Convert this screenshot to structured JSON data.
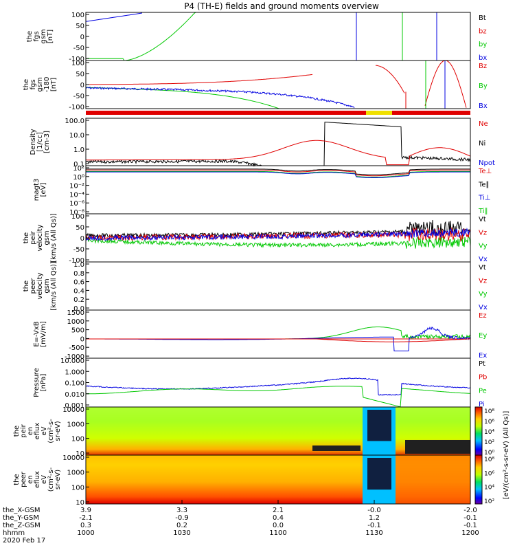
{
  "title": "P4 (TH-E) fields and ground moments overview",
  "colors": {
    "black": "#000000",
    "red": "#e00000",
    "green": "#00c800",
    "blue": "#0000e0",
    "yellow": "#f0e000"
  },
  "time_axis": {
    "hhmm_ticks": [
      "1000",
      "1030",
      "1100",
      "1130",
      "1200"
    ],
    "date_label": "2020 Feb 17",
    "rows": [
      {
        "label": "the_X-GSM",
        "values": [
          "3.9",
          "3.3",
          "2.1",
          "-0.0",
          "-2.0"
        ]
      },
      {
        "label": "the_Y-GSM",
        "values": [
          "-2.1",
          "-0.9",
          "0.4",
          "1.2",
          "-0.1"
        ]
      },
      {
        "label": "the_Z-GSM",
        "values": [
          "0.3",
          "0.2",
          "0.0",
          "-0.1",
          "-0.1"
        ]
      },
      {
        "label": "hhmm",
        "values": []
      }
    ]
  },
  "panels": [
    {
      "id": "fgs",
      "ylabel": [
        "the",
        "fgs",
        "gsm",
        "[nT]"
      ],
      "ticks": [
        "100",
        "50",
        "0",
        "-50",
        "-100"
      ],
      "legend": [
        {
          "text": "Bt",
          "color": "#000000"
        },
        {
          "text": "bz",
          "color": "#e00000"
        },
        {
          "text": "by",
          "color": "#00c800"
        },
        {
          "text": "bx",
          "color": "#0000e0"
        }
      ]
    },
    {
      "id": "fgs_lp",
      "ylabel": [
        "the",
        "fgs",
        "gsm",
        "-180",
        "[nT]"
      ],
      "ticks": [
        "100",
        "50",
        "0",
        "-50",
        "-100"
      ],
      "legend": [
        {
          "text": "Bz",
          "color": "#e00000"
        },
        {
          "text": "By",
          "color": "#00c800"
        },
        {
          "text": "Bx",
          "color": "#0000e0"
        }
      ]
    },
    {
      "id": "density",
      "ylabel": [
        "Density",
        "[1/cc]",
        "[cm-3]"
      ],
      "ticks": [
        "100.0",
        "10.0",
        "1.0",
        "0.1"
      ],
      "legend": [
        {
          "text": "Ne",
          "color": "#e00000"
        },
        {
          "text": "Ni",
          "color": "#000000"
        },
        {
          "text": "Npot",
          "color": "#0000e0"
        }
      ]
    },
    {
      "id": "temperature",
      "ylabel": [
        "magt3",
        "[eV]"
      ],
      "ticks": [
        "10²",
        "10⁰",
        "10⁻²",
        "10⁻⁴",
        "10⁻⁶",
        "10⁻⁸"
      ],
      "legend": [
        {
          "text": "Te⊥",
          "color": "#e00000"
        },
        {
          "text": "Te∥",
          "color": "#000000"
        },
        {
          "text": "Ti⊥",
          "color": "#0000e0"
        },
        {
          "text": "Ti∥",
          "color": "#00c800"
        }
      ]
    },
    {
      "id": "velocity_peir",
      "ylabel": [
        "the",
        "peir",
        "velocity",
        "gsm",
        "[km/s (All Qs)]"
      ],
      "ticks": [
        "100",
        "50",
        "0",
        "-50",
        "-100"
      ],
      "legend": [
        {
          "text": "Vt",
          "color": "#000000"
        },
        {
          "text": "Vz",
          "color": "#e00000"
        },
        {
          "text": "Vy",
          "color": "#00c800"
        },
        {
          "text": "Vx",
          "color": "#0000e0"
        }
      ]
    },
    {
      "id": "velocity_peer",
      "ylabel": [
        "the",
        "peer",
        "velocity",
        "gsm",
        "[km/s (All Qs)]"
      ],
      "ticks": [
        "1.0",
        "0.8",
        "0.6",
        "0.4",
        "0.2",
        "0.0"
      ],
      "legend": [
        {
          "text": "Vt",
          "color": "#000000"
        },
        {
          "text": "Vz",
          "color": "#e00000"
        },
        {
          "text": "Vy",
          "color": "#00c800"
        },
        {
          "text": "Vx",
          "color": "#0000e0"
        }
      ]
    },
    {
      "id": "efield",
      "ylabel": [
        "E=-VxB",
        "[mV/m]"
      ],
      "ticks": [
        "1500",
        "1000",
        "500",
        "0",
        "-500",
        "-1000"
      ],
      "legend": [
        {
          "text": "Ez",
          "color": "#e00000"
        },
        {
          "text": "Ey",
          "color": "#00c800"
        },
        {
          "text": "Ex",
          "color": "#0000e0"
        }
      ]
    },
    {
      "id": "pressure",
      "ylabel": [
        "Pressure",
        "[nPa]"
      ],
      "ticks": [
        "10.000",
        "1.000",
        "0.100",
        "0.010",
        "0.001"
      ],
      "legend": [
        {
          "text": "Pt",
          "color": "#000000"
        },
        {
          "text": "Pb",
          "color": "#e00000"
        },
        {
          "text": "Pe",
          "color": "#00c800"
        },
        {
          "text": "Pi",
          "color": "#0000e0"
        }
      ]
    },
    {
      "id": "peir_eflux",
      "ylabel": [
        "the",
        "peir",
        "en",
        "eflux",
        "eV",
        "(cm²-s-",
        "sr-eV)"
      ],
      "ticks": [
        "10000",
        "1000",
        "100",
        "10"
      ],
      "colorbar": [
        "10⁸",
        "10⁶",
        "10⁴",
        "10²",
        "10⁰"
      ],
      "colorbar_label": "[eV/(cm²-s-sr-eV) (All Qs)]"
    },
    {
      "id": "peer_eflux",
      "ylabel": [
        "the",
        "peer",
        "en",
        "eflux",
        "eV",
        "(cm²-s-",
        "sr-eV)"
      ],
      "ticks": [
        "10000",
        "1000",
        "100",
        "10"
      ],
      "colorbar": [
        "10⁸",
        "10⁶",
        "10⁴",
        "10²"
      ],
      "colorbar_label": "[eV/(cm²-s-sr-eV) (All Qs)]"
    }
  ]
}
